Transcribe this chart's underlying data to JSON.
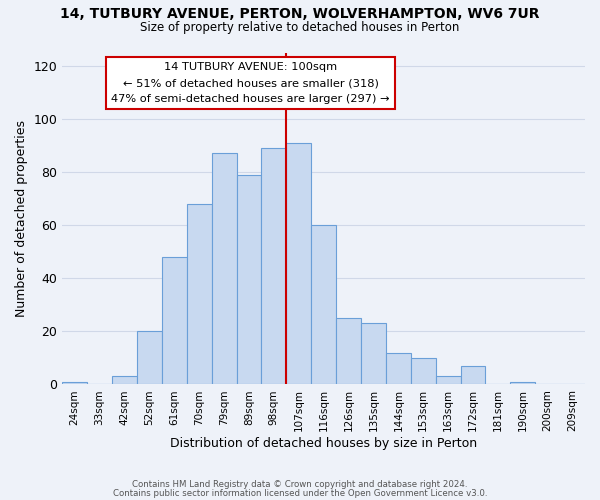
{
  "title": "14, TUTBURY AVENUE, PERTON, WOLVERHAMPTON, WV6 7UR",
  "subtitle": "Size of property relative to detached houses in Perton",
  "xlabel": "Distribution of detached houses by size in Perton",
  "ylabel": "Number of detached properties",
  "bar_labels": [
    "24sqm",
    "33sqm",
    "42sqm",
    "52sqm",
    "61sqm",
    "70sqm",
    "79sqm",
    "89sqm",
    "98sqm",
    "107sqm",
    "116sqm",
    "126sqm",
    "135sqm",
    "144sqm",
    "153sqm",
    "163sqm",
    "172sqm",
    "181sqm",
    "190sqm",
    "200sqm",
    "209sqm"
  ],
  "bar_values": [
    1,
    0,
    3,
    20,
    48,
    68,
    87,
    79,
    89,
    91,
    60,
    25,
    23,
    12,
    10,
    3,
    7,
    0,
    1,
    0,
    0
  ],
  "bar_color": "#c8d9f0",
  "bar_edge_color": "#6a9fd8",
  "vline_color": "#cc0000",
  "annotation_title": "14 TUTBURY AVENUE: 100sqm",
  "annotation_line1": "← 51% of detached houses are smaller (318)",
  "annotation_line2": "47% of semi-detached houses are larger (297) →",
  "annotation_box_color": "#ffffff",
  "annotation_box_edge": "#cc0000",
  "ylim": [
    0,
    125
  ],
  "yticks": [
    0,
    20,
    40,
    60,
    80,
    100,
    120
  ],
  "footnote1": "Contains HM Land Registry data © Crown copyright and database right 2024.",
  "footnote2": "Contains public sector information licensed under the Open Government Licence v3.0.",
  "background_color": "#eef2f9",
  "grid_color": "#d0d8e8"
}
